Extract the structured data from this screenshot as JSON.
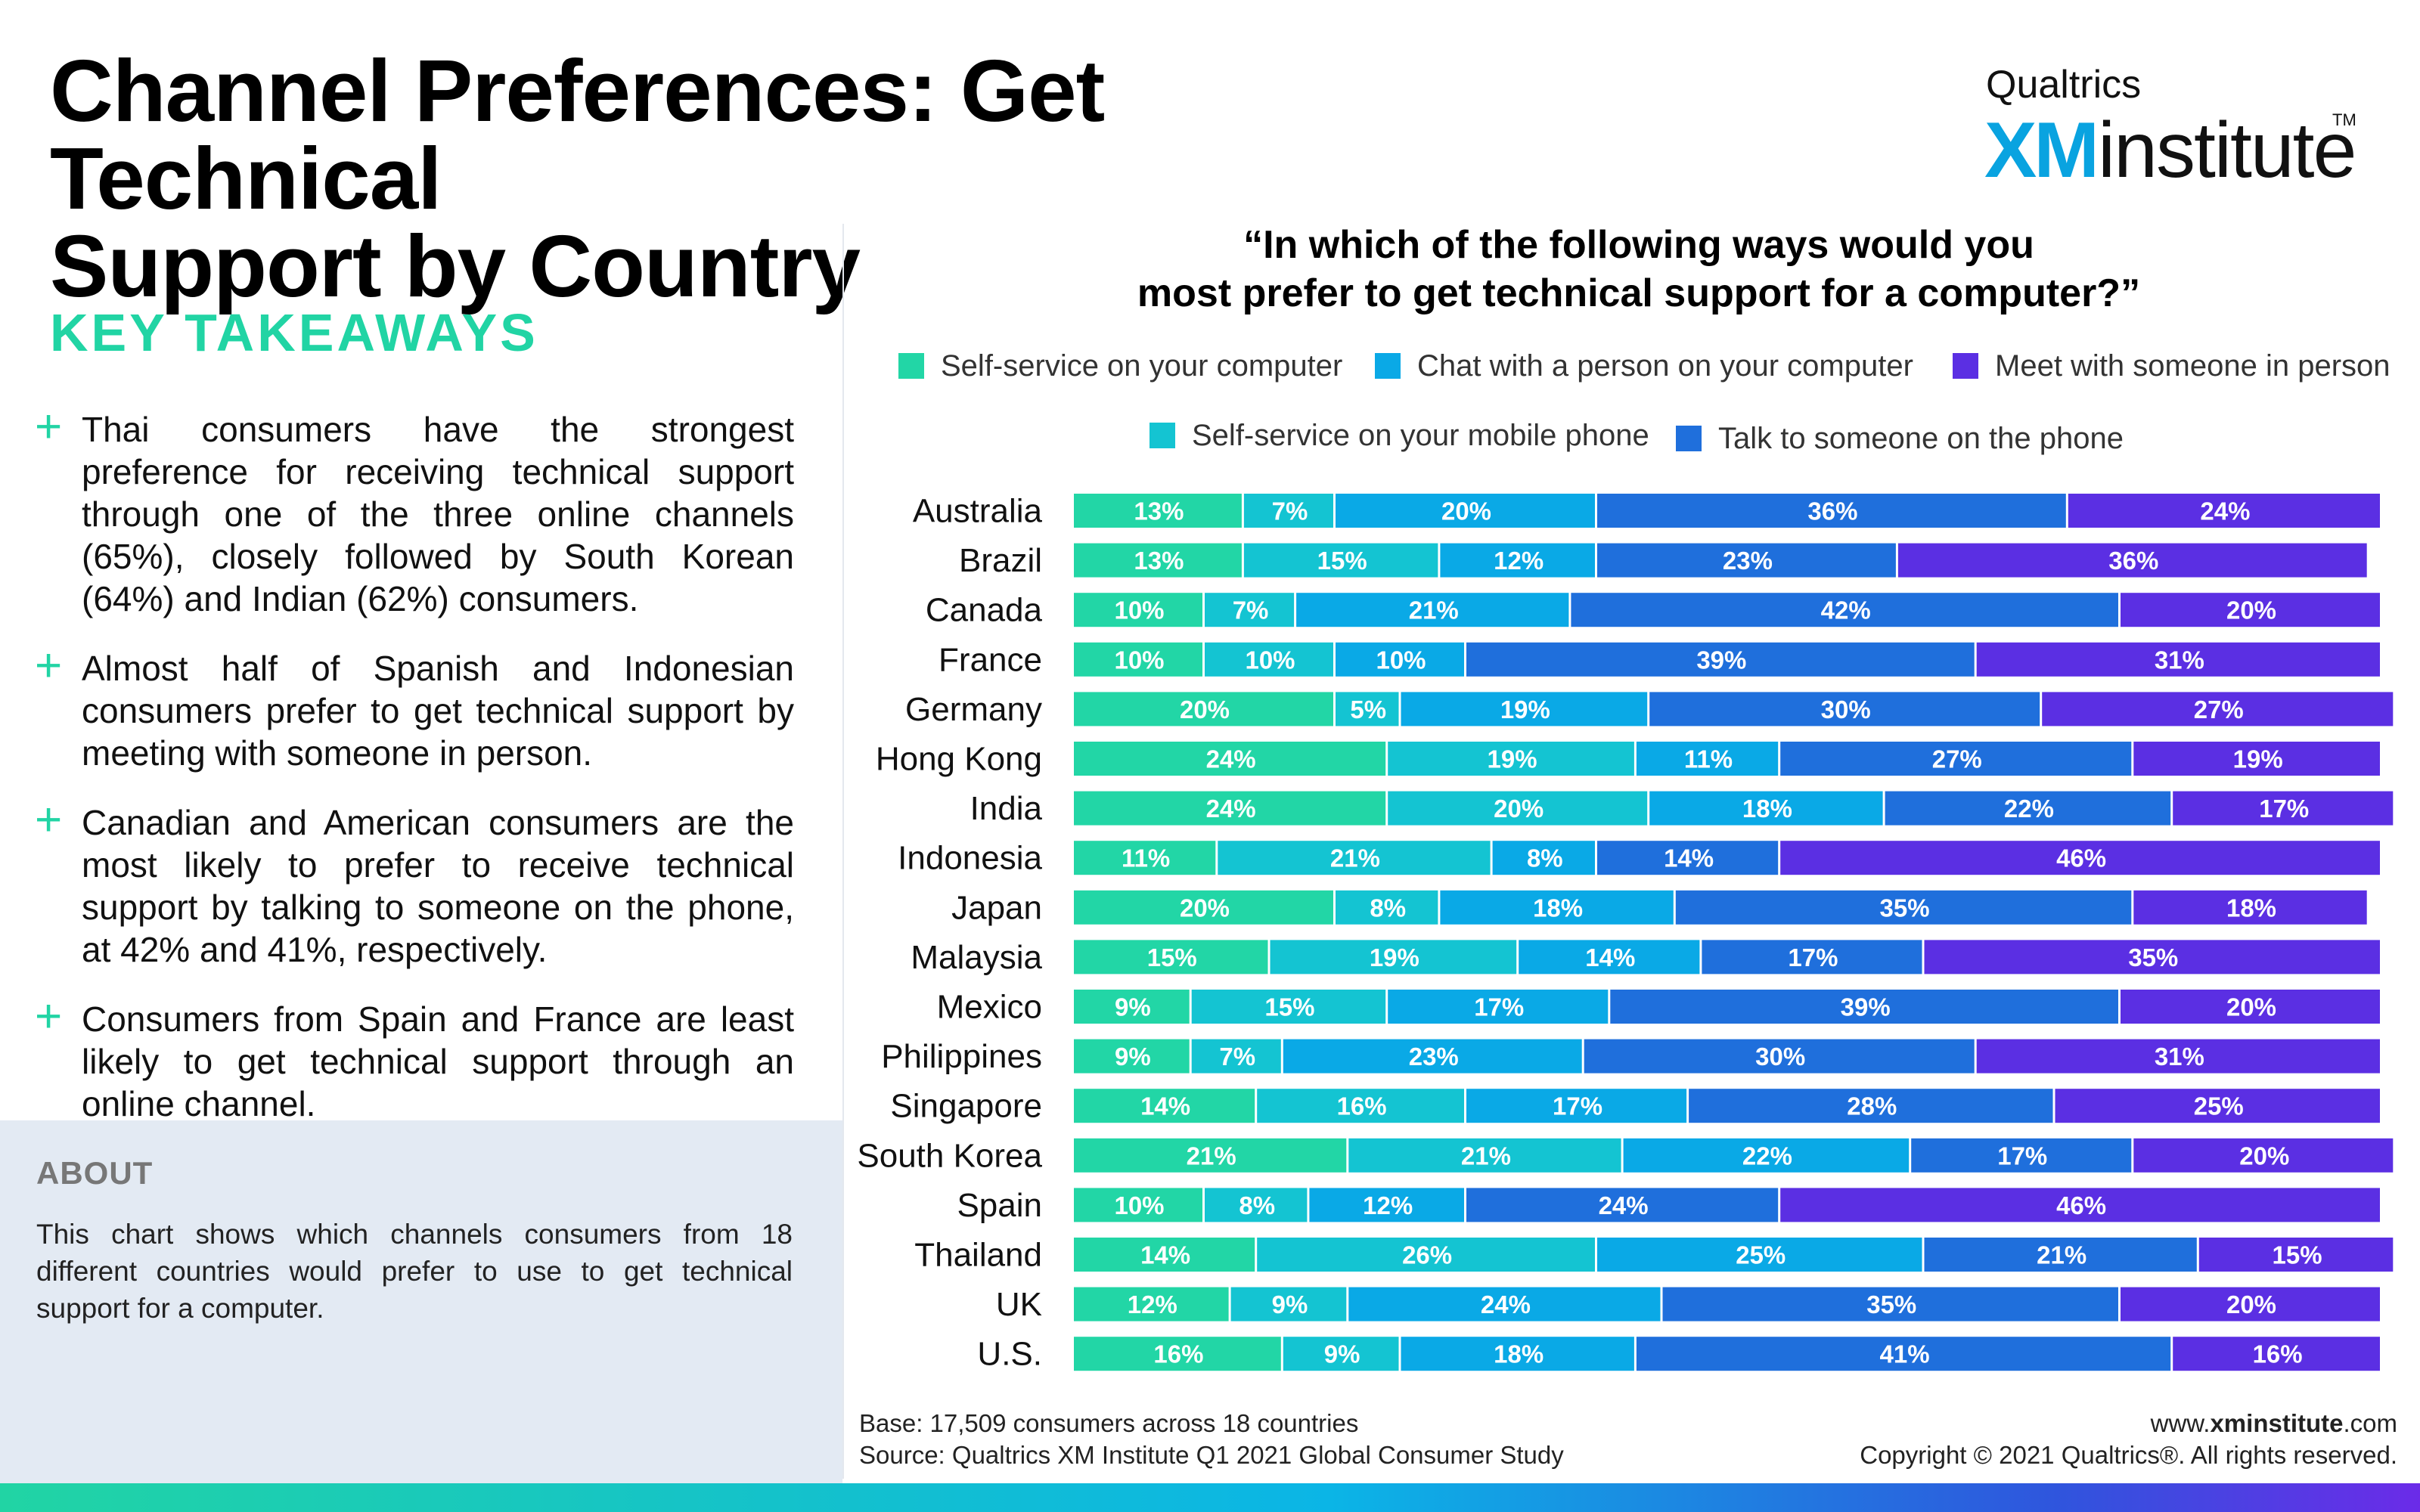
{
  "header": {
    "title_line1": "Channel Preferences: Get Technical",
    "title_line2": "Support by Country",
    "logo_brand": "Qualtrics",
    "logo_xm": "XM",
    "logo_institute": "institute",
    "logo_tm": "TM"
  },
  "takeaways": {
    "heading": "KEY TAKEAWAYS",
    "plus_icon": "+",
    "items": [
      "Thai consumers have the strongest preference for receiving technical support through one of the three online channels (65%), closely followed by South Korean (64%) and Indian (62%) consumers.",
      "Almost half of Spanish and Indonesian consumers prefer to get technical support by meeting with someone in person.",
      "Canadian and American consumers are the most likely to prefer to receive technical support by talking to someone on the phone, at 42% and 41%, respectively.",
      "Consumers from Spain and France are least likely to get technical support through an online channel."
    ]
  },
  "about": {
    "heading": "ABOUT",
    "text": "This chart shows which channels consumers from 18 different countries would prefer to use to get technical support for a computer."
  },
  "footer": {
    "base": "Base: 17,509 consumers across 18 countries",
    "source": "Source: Qualtrics XM Institute Q1 2021 Global Consumer Study",
    "website_prefix": "www.",
    "website_bold": "xminstitute",
    "website_suffix": ".com",
    "copyright": "Copyright © 2021 Qualtrics®. All rights reserved."
  },
  "chart_data": {
    "type": "bar",
    "orientation": "horizontal",
    "stacked": true,
    "title_line1": "“In which of the following ways would you",
    "title_line2": "most prefer to get technical support for a computer?”",
    "xlabel": "",
    "ylabel": "",
    "xlim": [
      0,
      100
    ],
    "grid": false,
    "legend_position": "top",
    "categories": [
      "Australia",
      "Brazil",
      "Canada",
      "France",
      "Germany",
      "Hong Kong",
      "India",
      "Indonesia",
      "Japan",
      "Malaysia",
      "Mexico",
      "Philippines",
      "Singapore",
      "South Korea",
      "Spain",
      "Thailand",
      "UK",
      "U.S."
    ],
    "series": [
      {
        "name": "Self-service on your computer",
        "color": "#22d6a6",
        "values": [
          13,
          13,
          10,
          10,
          20,
          24,
          24,
          11,
          20,
          15,
          9,
          9,
          14,
          21,
          10,
          14,
          12,
          16
        ]
      },
      {
        "name": "Self-service on your mobile phone",
        "color": "#14c4d2",
        "values": [
          7,
          15,
          7,
          10,
          5,
          19,
          20,
          21,
          8,
          19,
          15,
          7,
          16,
          21,
          8,
          26,
          9,
          9
        ]
      },
      {
        "name": "Chat with a person on your computer",
        "color": "#0aa9e6",
        "values": [
          20,
          12,
          21,
          10,
          19,
          11,
          18,
          8,
          18,
          14,
          17,
          23,
          17,
          22,
          12,
          25,
          24,
          18
        ]
      },
      {
        "name": "Talk to someone on the phone",
        "color": "#1f6fdc",
        "values": [
          36,
          23,
          42,
          39,
          30,
          27,
          22,
          14,
          35,
          17,
          39,
          30,
          28,
          17,
          24,
          21,
          35,
          41
        ]
      },
      {
        "name": "Meet with someone in person",
        "color": "#5b2fe3",
        "values": [
          24,
          36,
          20,
          31,
          27,
          19,
          17,
          46,
          18,
          35,
          20,
          31,
          25,
          20,
          46,
          15,
          20,
          16
        ]
      }
    ]
  }
}
